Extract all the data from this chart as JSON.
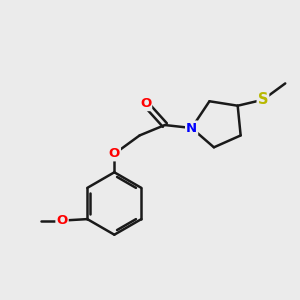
{
  "bg_color": "#ebebeb",
  "bond_color": "#1a1a1a",
  "bond_width": 1.8,
  "atom_colors": {
    "O": "#ff0000",
    "N": "#0000ff",
    "S": "#b8b800",
    "C": "#1a1a1a"
  },
  "font_size": 9.5
}
